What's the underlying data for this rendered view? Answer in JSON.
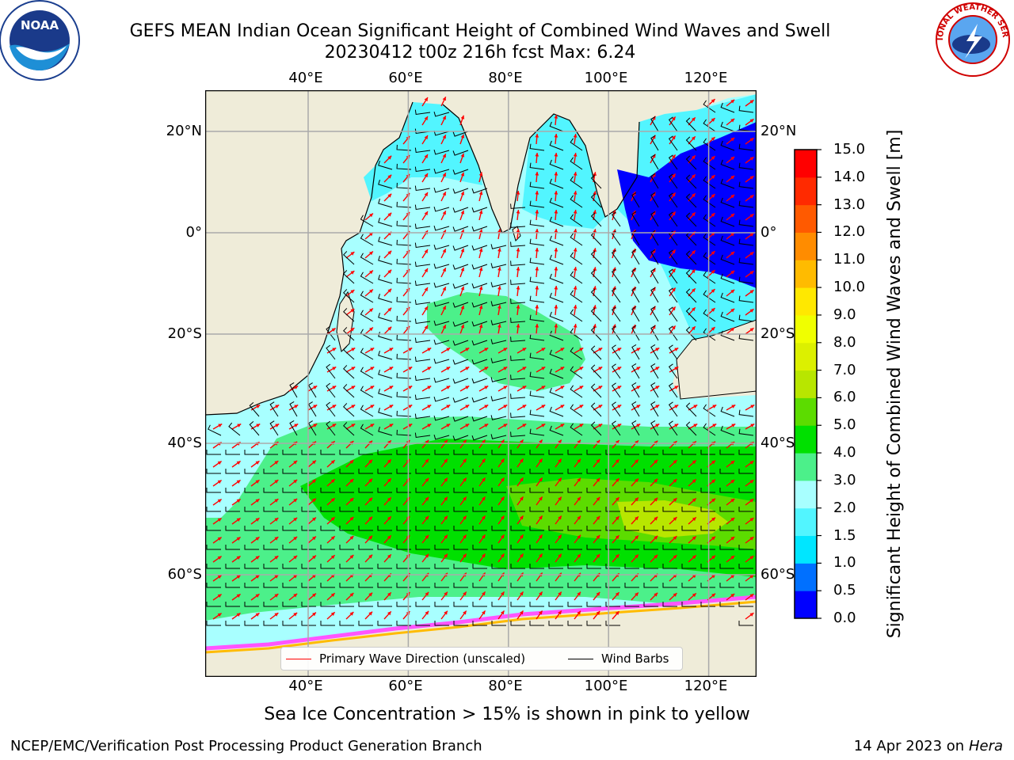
{
  "title": {
    "line1": "GEFS MEAN Indian Ocean Significant Height of Combined Wind Waves and Swell",
    "line2": "20230412 t00z 216h fcst   Max: 6.24"
  },
  "map": {
    "lon_ticks": [
      "40°E",
      "60°E",
      "80°E",
      "100°E",
      "120°E"
    ],
    "lat_ticks": [
      "20°N",
      "0°",
      "20°S",
      "40°S",
      "60°S"
    ],
    "lon_range": [
      20,
      130
    ],
    "lat_range": [
      -75,
      28
    ]
  },
  "colorbar": {
    "title": "Significant Height of Combined Wind Waves and Swell [m]",
    "levels": [
      "0.0",
      "0.5",
      "1.0",
      "1.5",
      "2.0",
      "3.0",
      "4.0",
      "5.0",
      "6.0",
      "7.0",
      "8.0",
      "9.0",
      "10.0",
      "11.0",
      "12.0",
      "13.0",
      "14.0",
      "15.0"
    ],
    "colors": [
      "#0000ff",
      "#0070ff",
      "#00e6ff",
      "#52f5ff",
      "#a8ffff",
      "#4cf08a",
      "#00e000",
      "#5cdc00",
      "#b8e600",
      "#dcf000",
      "#f0ff00",
      "#ffe800",
      "#ffbb00",
      "#ff8c00",
      "#ff5a00",
      "#ff2a00",
      "#ff0000"
    ]
  },
  "legend": {
    "wave_label": "Primary Wave Direction (unscaled)",
    "barb_label": "Wind Barbs",
    "wave_color": "#ff0000",
    "barb_color": "#000000"
  },
  "caption": "Sea Ice Concentration > 15% is shown in pink to yellow",
  "footer": {
    "left": "NCEP/EMC/Verification Post Processing Product Generation Branch",
    "right_date": "14 Apr 2023 on ",
    "right_machine": "Hera"
  },
  "colors": {
    "land": "#efecd9",
    "ocean_low": "#a8ffff",
    "sea_ice": "#ff55ff"
  },
  "logos": {
    "left": "NOAA",
    "right": "NATIONAL WEATHER SERVICE"
  }
}
